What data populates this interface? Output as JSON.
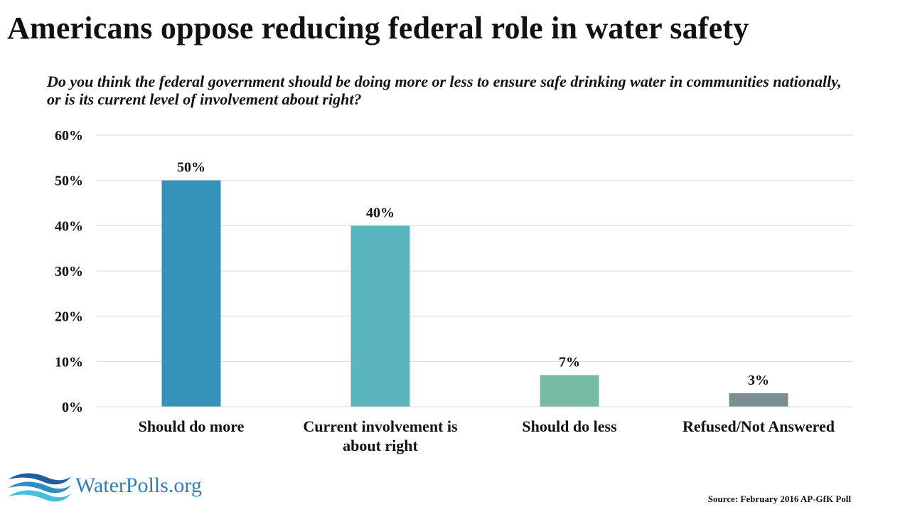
{
  "title": "Americans oppose reducing federal role in water safety",
  "subtitle": "Do you think the federal government should be doing more or less to ensure safe drinking water in communities nationally, or is its current level of involvement about right?",
  "logo": {
    "text": "WaterPolls.org",
    "icon": "water-waves-icon",
    "colors": [
      "#1f5fa0",
      "#2b8fc9",
      "#46c1d6"
    ]
  },
  "source": "Source: February 2016 AP-GfK Poll",
  "chart_data": {
    "type": "bar",
    "categories": [
      [
        "Should do more"
      ],
      [
        "Current involvement is",
        "about right"
      ],
      [
        "Should do less"
      ],
      [
        "Refused/Not Answered"
      ]
    ],
    "values": [
      50,
      40,
      7,
      3
    ],
    "value_labels": [
      "50%",
      "40%",
      "7%",
      "3%"
    ],
    "colors": [
      "#3593bb",
      "#5ab5be",
      "#76bca4",
      "#7b8f91"
    ],
    "ylim": [
      0,
      60
    ],
    "yticks": [
      0,
      10,
      20,
      30,
      40,
      50,
      60
    ],
    "ytick_labels": [
      "0%",
      "10%",
      "20%",
      "30%",
      "40%",
      "50%",
      "60%"
    ],
    "grid": true,
    "gridline_color": "#d9d9d9",
    "legend": "none"
  }
}
